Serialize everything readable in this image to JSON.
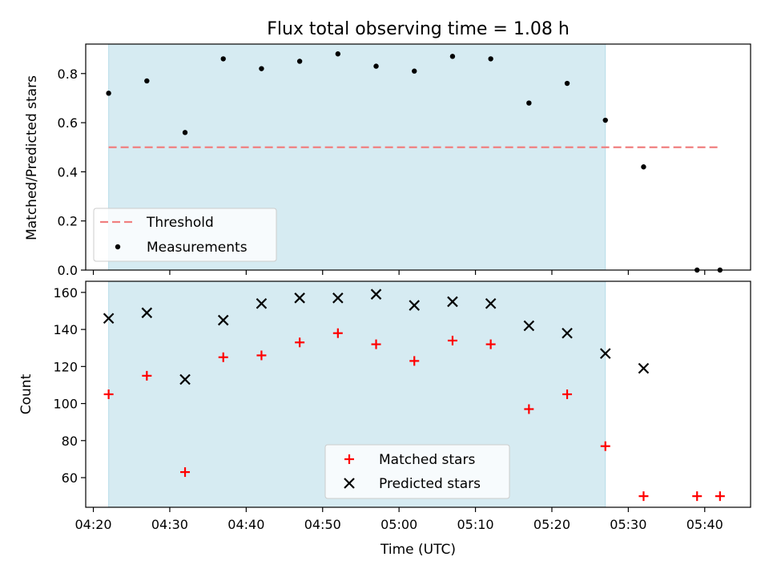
{
  "chart_data": [
    {
      "type": "scatter",
      "title": "Flux total observing time = 1.08 h",
      "xlabel": "",
      "ylabel": "Matched/Predicted stars",
      "xlim": [
        "04:19",
        "05:46"
      ],
      "ylim": [
        0,
        0.92
      ],
      "yticks": [
        "0.0",
        "0.2",
        "0.4",
        "0.6",
        "0.8"
      ],
      "shaded_region": {
        "start": "04:22",
        "end": "05:27",
        "color": "#add8e6"
      },
      "threshold": {
        "name": "Threshold",
        "y": 0.5,
        "x_start": "04:22",
        "x_end": "05:42",
        "color": "#f08080",
        "style": "dashed"
      },
      "series": [
        {
          "name": "Measurements",
          "marker": "dot",
          "color": "#000000",
          "x": [
            "04:22",
            "04:27",
            "04:32",
            "04:37",
            "04:42",
            "04:47",
            "04:52",
            "04:57",
            "05:02",
            "05:07",
            "05:12",
            "05:17",
            "05:22",
            "05:27",
            "05:32",
            "05:39",
            "05:42"
          ],
          "y": [
            0.72,
            0.77,
            0.56,
            0.86,
            0.82,
            0.85,
            0.88,
            0.83,
            0.81,
            0.87,
            0.86,
            0.68,
            0.76,
            0.61,
            0.42,
            0.0,
            0.0
          ]
        }
      ],
      "legend": {
        "position": "lower-left",
        "entries": [
          "Threshold",
          "Measurements"
        ]
      }
    },
    {
      "type": "scatter",
      "title": "",
      "xlabel": "Time (UTC)",
      "ylabel": "Count",
      "xlim": [
        "04:19",
        "05:46"
      ],
      "ylim": [
        44,
        166
      ],
      "xticks": [
        "04:20",
        "04:30",
        "04:40",
        "04:50",
        "05:00",
        "05:10",
        "05:20",
        "05:30",
        "05:40"
      ],
      "yticks": [
        "60",
        "80",
        "100",
        "120",
        "140",
        "160"
      ],
      "shaded_region": {
        "start": "04:22",
        "end": "05:27",
        "color": "#add8e6"
      },
      "series": [
        {
          "name": "Matched stars",
          "marker": "plus",
          "color": "#ff0000",
          "x": [
            "04:22",
            "04:27",
            "04:32",
            "04:37",
            "04:42",
            "04:47",
            "04:52",
            "04:57",
            "05:02",
            "05:07",
            "05:12",
            "05:17",
            "05:22",
            "05:27",
            "05:32",
            "05:39",
            "05:42"
          ],
          "y": [
            105,
            115,
            63,
            125,
            126,
            133,
            138,
            132,
            123,
            134,
            132,
            97,
            105,
            77,
            50,
            50,
            50
          ]
        },
        {
          "name": "Predicted stars",
          "marker": "x",
          "color": "#000000",
          "x": [
            "04:22",
            "04:27",
            "04:32",
            "04:37",
            "04:42",
            "04:47",
            "04:52",
            "04:57",
            "05:02",
            "05:07",
            "05:12",
            "05:17",
            "05:22",
            "05:27",
            "05:32"
          ],
          "y": [
            146,
            149,
            113,
            145,
            154,
            157,
            157,
            159,
            153,
            155,
            154,
            142,
            138,
            127,
            119
          ]
        }
      ],
      "legend": {
        "position": "lower-center",
        "entries": [
          "Matched stars",
          "Predicted stars"
        ]
      }
    }
  ]
}
